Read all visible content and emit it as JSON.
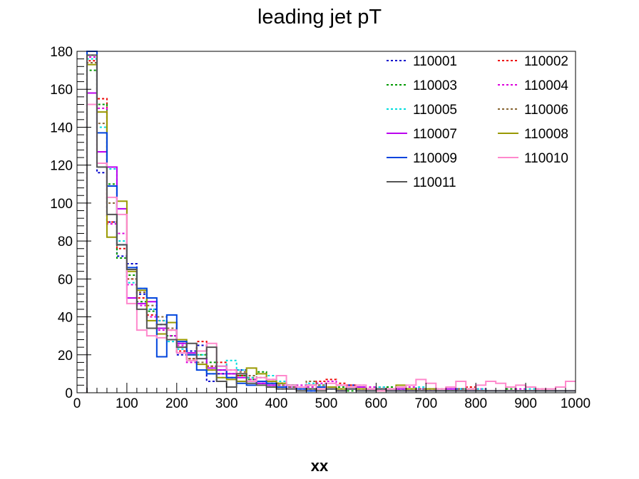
{
  "chart_data": {
    "type": "line",
    "title": "leading jet pT",
    "xlabel": "xx",
    "ylabel": "",
    "xlim": [
      0,
      1000
    ],
    "ylim": [
      0,
      180
    ],
    "x_ticks": [
      0,
      100,
      200,
      300,
      400,
      500,
      600,
      700,
      800,
      900,
      1000
    ],
    "y_ticks": [
      0,
      20,
      40,
      60,
      80,
      100,
      120,
      140,
      160,
      180
    ],
    "grid": false,
    "legend_position": "top-right",
    "bin_width": 20,
    "bin_edges_start": 20,
    "series": [
      {
        "name": "110001",
        "color": "#0000cc",
        "style": "dotted",
        "values": [
          178,
          116,
          90,
          72,
          68,
          52,
          44,
          36,
          30,
          20,
          22,
          25,
          6,
          10,
          8,
          12,
          6,
          5,
          4,
          2,
          3,
          2,
          1,
          3,
          2,
          1,
          4,
          3,
          2,
          1,
          2,
          1,
          1,
          2,
          1,
          1,
          1,
          2,
          1,
          1,
          1,
          1,
          1,
          1,
          1,
          1,
          1,
          1,
          1
        ]
      },
      {
        "name": "110002",
        "color": "#ee0000",
        "style": "dotted",
        "values": [
          175,
          155,
          90,
          76,
          60,
          50,
          41,
          38,
          33,
          22,
          18,
          27,
          14,
          16,
          12,
          9,
          8,
          6,
          7,
          5,
          4,
          3,
          2,
          6,
          7,
          5,
          4,
          3,
          2,
          3,
          2,
          2,
          2,
          1,
          2,
          1,
          1,
          1,
          3,
          2,
          1,
          1,
          1,
          1,
          1,
          2,
          1,
          1,
          1
        ]
      },
      {
        "name": "110003",
        "color": "#009900",
        "style": "dotted",
        "values": [
          170,
          152,
          110,
          71,
          62,
          48,
          43,
          34,
          30,
          24,
          17,
          20,
          16,
          12,
          10,
          9,
          7,
          11,
          6,
          5,
          4,
          3,
          2,
          4,
          2,
          3,
          1,
          2,
          2,
          1,
          3,
          2,
          2,
          1,
          1,
          2,
          1,
          1,
          2,
          1,
          1,
          1,
          2,
          1,
          1,
          1,
          1,
          1,
          1
        ]
      },
      {
        "name": "110004",
        "color": "#dd00dd",
        "style": "dotted",
        "values": [
          177,
          150,
          89,
          84,
          57,
          46,
          40,
          33,
          30,
          25,
          16,
          22,
          12,
          10,
          8,
          10,
          7,
          5,
          6,
          4,
          3,
          4,
          3,
          5,
          6,
          4,
          3,
          2,
          3,
          2,
          2,
          1,
          3,
          2,
          1,
          1,
          2,
          1,
          1,
          2,
          1,
          1,
          1,
          2,
          1,
          1,
          1,
          1,
          1
        ]
      },
      {
        "name": "110005",
        "color": "#00dddd",
        "style": "dotted",
        "values": [
          176,
          140,
          118,
          80,
          58,
          55,
          44,
          38,
          27,
          23,
          20,
          20,
          10,
          8,
          17,
          12,
          8,
          6,
          9,
          6,
          4,
          3,
          5,
          4,
          3,
          2,
          3,
          4,
          2,
          3,
          2,
          2,
          1,
          3,
          2,
          1,
          1,
          2,
          1,
          2,
          1,
          1,
          1,
          1,
          2,
          1,
          1,
          1,
          1
        ]
      },
      {
        "name": "110006",
        "color": "#886633",
        "style": "dotted",
        "values": [
          174,
          142,
          100,
          78,
          60,
          53,
          46,
          40,
          34,
          26,
          18,
          16,
          14,
          12,
          10,
          11,
          9,
          8,
          5,
          4,
          3,
          2,
          6,
          4,
          3,
          2,
          2,
          3,
          1,
          2,
          1,
          2,
          1,
          2,
          1,
          1,
          1,
          2,
          1,
          1,
          1,
          1,
          1,
          1,
          1,
          1,
          1,
          1,
          1
        ]
      },
      {
        "name": "110007",
        "color": "#bb00ee",
        "style": "solid",
        "values": [
          158,
          127,
          119,
          97,
          50,
          47,
          48,
          34,
          37,
          26,
          21,
          18,
          13,
          12,
          10,
          8,
          6,
          5,
          4,
          3,
          2,
          3,
          4,
          2,
          3,
          1,
          2,
          3,
          2,
          1,
          1,
          2,
          1,
          1,
          1,
          1,
          2,
          1,
          1,
          1,
          1,
          1,
          1,
          1,
          1,
          1,
          1,
          1,
          1
        ]
      },
      {
        "name": "110008",
        "color": "#999900",
        "style": "solid",
        "values": [
          173,
          148,
          82,
          101,
          64,
          54,
          38,
          31,
          37,
          28,
          20,
          15,
          12,
          8,
          7,
          6,
          13,
          10,
          6,
          5,
          4,
          3,
          4,
          2,
          3,
          2,
          3,
          2,
          2,
          1,
          2,
          4,
          2,
          1,
          2,
          1,
          1,
          1,
          2,
          1,
          1,
          1,
          1,
          1,
          1,
          1,
          1,
          1,
          1
        ]
      },
      {
        "name": "110009",
        "color": "#0044dd",
        "style": "solid",
        "values": [
          181,
          137,
          109,
          78,
          66,
          55,
          50,
          19,
          41,
          27,
          20,
          12,
          10,
          14,
          8,
          5,
          4,
          6,
          5,
          3,
          4,
          2,
          1,
          3,
          2,
          1,
          2,
          1,
          1,
          2,
          1,
          1,
          1,
          1,
          1,
          1,
          1,
          1,
          1,
          1,
          1,
          1,
          1,
          1,
          1,
          1,
          1,
          1,
          1
        ]
      },
      {
        "name": "110010",
        "color": "#ff88cc",
        "style": "solid",
        "values": [
          152,
          121,
          103,
          94,
          47,
          33,
          30,
          29,
          33,
          21,
          17,
          22,
          26,
          14,
          12,
          10,
          6,
          8,
          7,
          9,
          4,
          3,
          4,
          2,
          5,
          4,
          3,
          4,
          2,
          1,
          2,
          3,
          4,
          7,
          5,
          2,
          3,
          6,
          2,
          4,
          6,
          5,
          3,
          4,
          3,
          2,
          2,
          3,
          6
        ]
      },
      {
        "name": "110011",
        "color": "#555555",
        "style": "solid",
        "values": [
          178,
          119,
          94,
          78,
          65,
          44,
          34,
          36,
          28,
          24,
          26,
          18,
          24,
          6,
          3,
          10,
          5,
          4,
          3,
          2,
          2,
          1,
          2,
          1,
          2,
          1,
          2,
          1,
          1,
          2,
          1,
          1,
          1,
          1,
          1,
          1,
          1,
          1,
          1,
          1,
          1,
          1,
          1,
          1,
          1,
          1,
          1,
          1,
          1
        ]
      }
    ]
  }
}
